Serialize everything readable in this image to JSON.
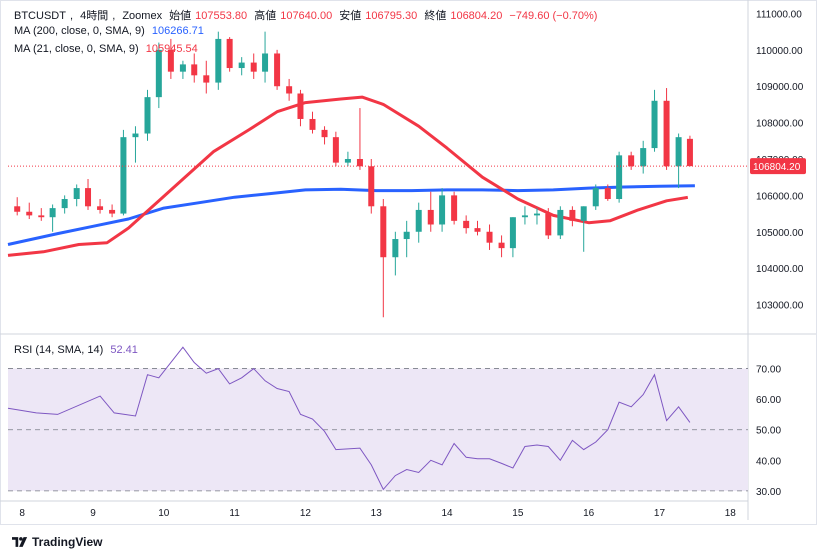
{
  "header": {
    "symbol": "BTCUSDT",
    "timeframe": "4時間",
    "exchange": "Zoomex",
    "open_label": "始値",
    "open_value": "107553.80",
    "high_label": "高値",
    "high_value": "107640.00",
    "low_label": "安値",
    "low_value": "106795.30",
    "close_label": "終値",
    "close_value": "106804.20",
    "change": "−749.60 (−0.70%)"
  },
  "indicators": {
    "ma200_label": "MA (200, close, 0, SMA, 9)",
    "ma200_value": "106266.71",
    "ma21_label": "MA (21, close, 0, SMA, 9)",
    "ma21_value": "105945.54",
    "rsi_label": "RSI (14, SMA, 14)",
    "rsi_value": "52.41"
  },
  "price_label": "106804.20",
  "colors": {
    "up": "#26a69a",
    "down": "#f23645",
    "ma200": "#2962ff",
    "ma21": "#f23645",
    "rsi": "#7e57c2",
    "rsi_band": "#ede7f6"
  },
  "chart_data": {
    "type": "candlestick",
    "price_axis": {
      "ticks": [
        "111000.00",
        "110000.00",
        "109000.00",
        "108000.00",
        "107000.00",
        "106000.00",
        "105000.00",
        "104000.00",
        "103000.00"
      ],
      "ylim": [
        102300,
        111150
      ]
    },
    "time_axis": {
      "ticks": [
        "8",
        "9",
        "10",
        "11",
        "12",
        "13",
        "14",
        "15",
        "16",
        "17",
        "18"
      ],
      "xlim": [
        7.8,
        18.25
      ]
    },
    "candles": [
      {
        "t": 7.93,
        "o": 105700,
        "h": 105950,
        "l": 105450,
        "c": 105550
      },
      {
        "t": 8.1,
        "o": 105550,
        "h": 105800,
        "l": 105350,
        "c": 105450
      },
      {
        "t": 8.27,
        "o": 105450,
        "h": 105650,
        "l": 105300,
        "c": 105400
      },
      {
        "t": 8.43,
        "o": 105400,
        "h": 105750,
        "l": 105000,
        "c": 105650
      },
      {
        "t": 8.6,
        "o": 105650,
        "h": 106000,
        "l": 105500,
        "c": 105900
      },
      {
        "t": 8.77,
        "o": 105900,
        "h": 106300,
        "l": 105700,
        "c": 106200
      },
      {
        "t": 8.93,
        "o": 106200,
        "h": 106450,
        "l": 105600,
        "c": 105700
      },
      {
        "t": 9.1,
        "o": 105700,
        "h": 105900,
        "l": 105500,
        "c": 105600
      },
      {
        "t": 9.27,
        "o": 105600,
        "h": 105750,
        "l": 105400,
        "c": 105500
      },
      {
        "t": 9.43,
        "o": 105500,
        "h": 107800,
        "l": 105450,
        "c": 107600
      },
      {
        "t": 9.6,
        "o": 107600,
        "h": 107900,
        "l": 106900,
        "c": 107700
      },
      {
        "t": 9.77,
        "o": 107700,
        "h": 108900,
        "l": 107500,
        "c": 108700
      },
      {
        "t": 9.93,
        "o": 108700,
        "h": 110200,
        "l": 108400,
        "c": 110000
      },
      {
        "t": 10.1,
        "o": 110000,
        "h": 110300,
        "l": 109200,
        "c": 109400
      },
      {
        "t": 10.27,
        "o": 109400,
        "h": 109700,
        "l": 109200,
        "c": 109600
      },
      {
        "t": 10.43,
        "o": 109600,
        "h": 109900,
        "l": 109100,
        "c": 109300
      },
      {
        "t": 10.6,
        "o": 109300,
        "h": 109700,
        "l": 108800,
        "c": 109100
      },
      {
        "t": 10.77,
        "o": 109100,
        "h": 110500,
        "l": 108900,
        "c": 110300
      },
      {
        "t": 10.93,
        "o": 110300,
        "h": 110350,
        "l": 109400,
        "c": 109500
      },
      {
        "t": 11.1,
        "o": 109500,
        "h": 109800,
        "l": 109300,
        "c": 109650
      },
      {
        "t": 11.27,
        "o": 109650,
        "h": 109900,
        "l": 109200,
        "c": 109400
      },
      {
        "t": 11.43,
        "o": 109400,
        "h": 110500,
        "l": 109100,
        "c": 109900
      },
      {
        "t": 11.6,
        "o": 109900,
        "h": 110000,
        "l": 108900,
        "c": 109000
      },
      {
        "t": 11.77,
        "o": 109000,
        "h": 109200,
        "l": 108600,
        "c": 108800
      },
      {
        "t": 11.93,
        "o": 108800,
        "h": 108900,
        "l": 107900,
        "c": 108100
      },
      {
        "t": 12.1,
        "o": 108100,
        "h": 108300,
        "l": 107700,
        "c": 107800
      },
      {
        "t": 12.27,
        "o": 107800,
        "h": 107900,
        "l": 107400,
        "c": 107600
      },
      {
        "t": 12.43,
        "o": 107600,
        "h": 107750,
        "l": 106800,
        "c": 106900
      },
      {
        "t": 12.6,
        "o": 106900,
        "h": 107200,
        "l": 106800,
        "c": 107000
      },
      {
        "t": 12.77,
        "o": 107000,
        "h": 108400,
        "l": 106700,
        "c": 106800
      },
      {
        "t": 12.93,
        "o": 106800,
        "h": 107000,
        "l": 105500,
        "c": 105700
      },
      {
        "t": 13.1,
        "o": 105700,
        "h": 105900,
        "l": 102650,
        "c": 104300
      },
      {
        "t": 13.27,
        "o": 104300,
        "h": 105000,
        "l": 103800,
        "c": 104800
      },
      {
        "t": 13.43,
        "o": 104800,
        "h": 105300,
        "l": 104300,
        "c": 105000
      },
      {
        "t": 13.6,
        "o": 105000,
        "h": 105800,
        "l": 104700,
        "c": 105600
      },
      {
        "t": 13.77,
        "o": 105600,
        "h": 106100,
        "l": 105000,
        "c": 105200
      },
      {
        "t": 13.93,
        "o": 105200,
        "h": 106200,
        "l": 105000,
        "c": 106000
      },
      {
        "t": 14.1,
        "o": 106000,
        "h": 106100,
        "l": 105200,
        "c": 105300
      },
      {
        "t": 14.27,
        "o": 105300,
        "h": 105450,
        "l": 104950,
        "c": 105100
      },
      {
        "t": 14.43,
        "o": 105100,
        "h": 105300,
        "l": 104900,
        "c": 105000
      },
      {
        "t": 14.6,
        "o": 105000,
        "h": 105200,
        "l": 104500,
        "c": 104700
      },
      {
        "t": 14.77,
        "o": 104700,
        "h": 104900,
        "l": 104300,
        "c": 104550
      },
      {
        "t": 14.93,
        "o": 104550,
        "h": 105400,
        "l": 104300,
        "c": 105400
      },
      {
        "t": 15.1,
        "o": 105400,
        "h": 105700,
        "l": 105200,
        "c": 105450
      },
      {
        "t": 15.27,
        "o": 105450,
        "h": 105650,
        "l": 105200,
        "c": 105500
      },
      {
        "t": 15.43,
        "o": 105500,
        "h": 105650,
        "l": 104800,
        "c": 104900
      },
      {
        "t": 15.6,
        "o": 104900,
        "h": 105700,
        "l": 104800,
        "c": 105600
      },
      {
        "t": 15.77,
        "o": 105600,
        "h": 105700,
        "l": 105150,
        "c": 105300
      },
      {
        "t": 15.93,
        "o": 105300,
        "h": 105700,
        "l": 104450,
        "c": 105700
      },
      {
        "t": 16.1,
        "o": 105700,
        "h": 106300,
        "l": 105600,
        "c": 106200
      },
      {
        "t": 16.27,
        "o": 106200,
        "h": 106300,
        "l": 105850,
        "c": 105900
      },
      {
        "t": 16.43,
        "o": 105900,
        "h": 107200,
        "l": 105800,
        "c": 107100
      },
      {
        "t": 16.6,
        "o": 107100,
        "h": 107200,
        "l": 106700,
        "c": 106800
      },
      {
        "t": 16.77,
        "o": 106800,
        "h": 107500,
        "l": 106600,
        "c": 107300
      },
      {
        "t": 16.93,
        "o": 107300,
        "h": 108900,
        "l": 107200,
        "c": 108600
      },
      {
        "t": 17.1,
        "o": 108600,
        "h": 108950,
        "l": 106700,
        "c": 106800
      },
      {
        "t": 17.27,
        "o": 106800,
        "h": 107700,
        "l": 106200,
        "c": 107600
      },
      {
        "t": 17.43,
        "o": 107553.8,
        "h": 107640,
        "l": 106795.3,
        "c": 106804.2
      }
    ],
    "ma200": [
      [
        7.8,
        104650
      ],
      [
        8.5,
        104950
      ],
      [
        9.0,
        105150
      ],
      [
        9.5,
        105350
      ],
      [
        10.0,
        105650
      ],
      [
        10.5,
        105800
      ],
      [
        11.0,
        105950
      ],
      [
        11.5,
        106050
      ],
      [
        12.0,
        106150
      ],
      [
        12.5,
        106170
      ],
      [
        13.0,
        106130
      ],
      [
        13.5,
        106130
      ],
      [
        14.0,
        106150
      ],
      [
        14.5,
        106150
      ],
      [
        15.0,
        106130
      ],
      [
        15.5,
        106150
      ],
      [
        16.0,
        106200
      ],
      [
        16.5,
        106230
      ],
      [
        17.0,
        106250
      ],
      [
        17.5,
        106266.71
      ]
    ],
    "ma21": [
      [
        7.8,
        104350
      ],
      [
        8.3,
        104450
      ],
      [
        8.8,
        104650
      ],
      [
        9.2,
        104700
      ],
      [
        9.5,
        105100
      ],
      [
        9.9,
        105800
      ],
      [
        10.3,
        106500
      ],
      [
        10.7,
        107200
      ],
      [
        11.2,
        107800
      ],
      [
        11.6,
        108300
      ],
      [
        12.0,
        108550
      ],
      [
        12.5,
        108650
      ],
      [
        12.8,
        108700
      ],
      [
        13.1,
        108500
      ],
      [
        13.6,
        107900
      ],
      [
        14.0,
        107300
      ],
      [
        14.5,
        106500
      ],
      [
        15.0,
        105900
      ],
      [
        15.5,
        105450
      ],
      [
        16.0,
        105250
      ],
      [
        16.3,
        105300
      ],
      [
        16.7,
        105600
      ],
      [
        17.1,
        105850
      ],
      [
        17.4,
        105945.54
      ]
    ],
    "rsi": {
      "ylim": [
        28,
        80
      ],
      "ticks": [
        "70.00",
        "60.00",
        "50.00",
        "40.00",
        "30.00"
      ],
      "bands": [
        70,
        50,
        30
      ],
      "points": [
        [
          7.8,
          57
        ],
        [
          8.2,
          55.5
        ],
        [
          8.5,
          55
        ],
        [
          9.1,
          61
        ],
        [
          9.3,
          55.5
        ],
        [
          9.6,
          54.5
        ],
        [
          9.77,
          68
        ],
        [
          9.93,
          67
        ],
        [
          10.27,
          77
        ],
        [
          10.43,
          72
        ],
        [
          10.6,
          68.5
        ],
        [
          10.77,
          70
        ],
        [
          10.93,
          65
        ],
        [
          11.1,
          67
        ],
        [
          11.27,
          70
        ],
        [
          11.43,
          66
        ],
        [
          11.6,
          63.5
        ],
        [
          11.77,
          62.5
        ],
        [
          11.93,
          55
        ],
        [
          12.1,
          53.5
        ],
        [
          12.27,
          49.5
        ],
        [
          12.43,
          43.5
        ],
        [
          12.77,
          44
        ],
        [
          12.93,
          38.5
        ],
        [
          13.1,
          30.5
        ],
        [
          13.27,
          35
        ],
        [
          13.43,
          37
        ],
        [
          13.6,
          36
        ],
        [
          13.77,
          40
        ],
        [
          13.93,
          38.5
        ],
        [
          14.1,
          45.5
        ],
        [
          14.27,
          41
        ],
        [
          14.43,
          40.5
        ],
        [
          14.6,
          40.5
        ],
        [
          14.77,
          39
        ],
        [
          14.93,
          37.5
        ],
        [
          15.1,
          44.5
        ],
        [
          15.27,
          45
        ],
        [
          15.43,
          44.5
        ],
        [
          15.6,
          40
        ],
        [
          15.77,
          46.5
        ],
        [
          15.93,
          43.5
        ],
        [
          16.1,
          46
        ],
        [
          16.27,
          50
        ],
        [
          16.43,
          59
        ],
        [
          16.6,
          57.5
        ],
        [
          16.77,
          61.5
        ],
        [
          16.93,
          68
        ],
        [
          17.1,
          53
        ],
        [
          17.27,
          57.5
        ],
        [
          17.43,
          52.41
        ]
      ]
    }
  },
  "branding": "TradingView"
}
